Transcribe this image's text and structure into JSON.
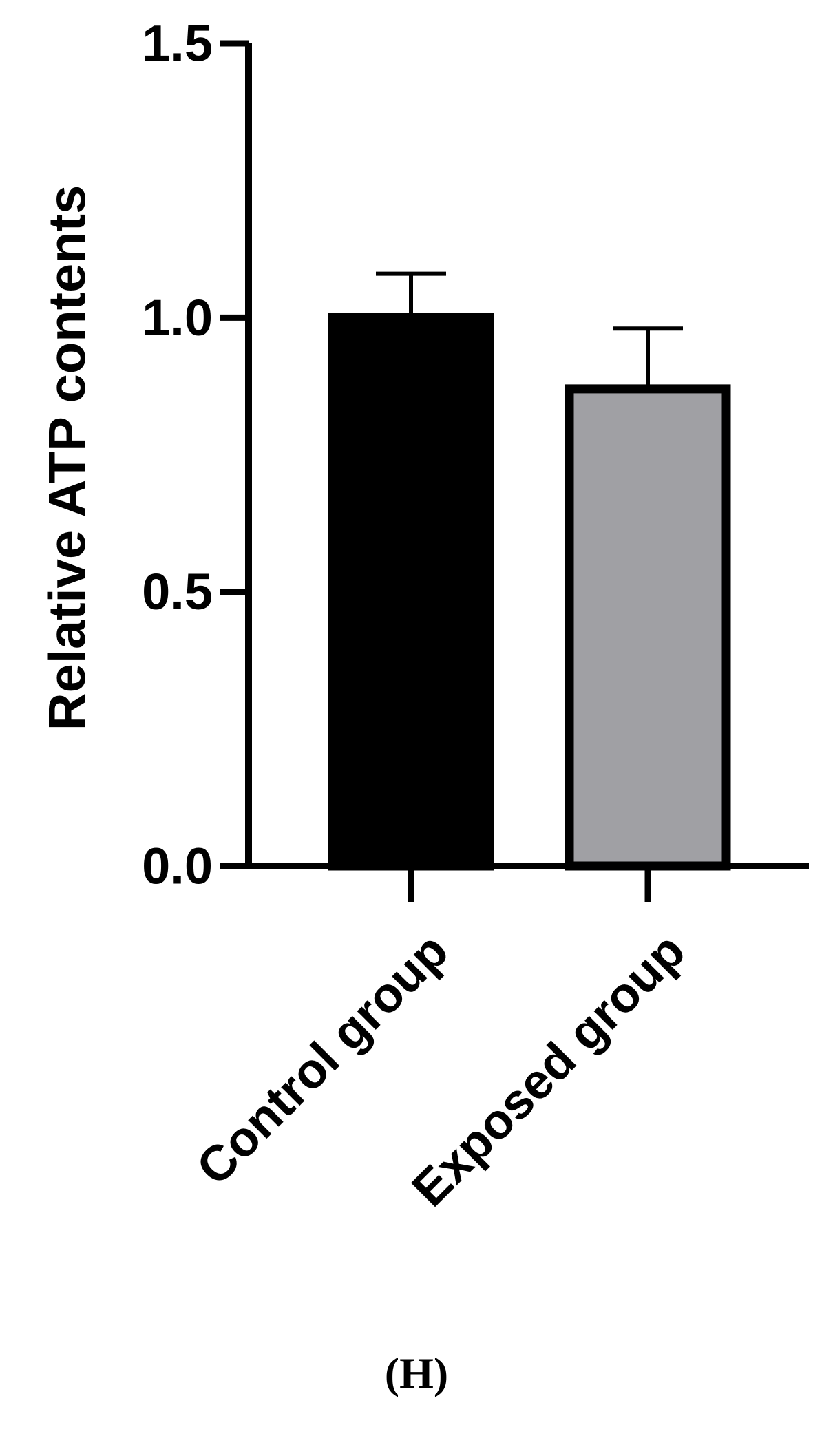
{
  "chart_data": {
    "type": "bar",
    "title": "",
    "xlabel": "",
    "ylabel": "Relative ATP contents",
    "ylim": [
      0,
      1.5
    ],
    "yticks": [
      "0.0",
      "0.5",
      "1.0",
      "1.5"
    ],
    "grid": false,
    "categories": [
      "Control group",
      "Exposed group"
    ],
    "values": [
      1.0,
      0.87
    ],
    "error_upper": [
      0.08,
      0.11
    ],
    "bar_colors": [
      "#000000",
      "#a0a0a4"
    ],
    "bar_edge_color": "#000000"
  },
  "panel_label": "(H)"
}
